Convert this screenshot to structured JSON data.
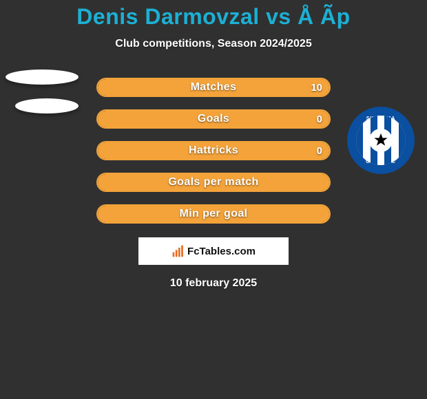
{
  "background_color": "#303030",
  "title": {
    "text": "Denis Darmovzal vs Å Ãp",
    "color": "#1cb0d4",
    "fontsize": 32
  },
  "subtitle": {
    "text": "Club competitions, Season 2024/2025",
    "color": "#ffffff",
    "fontsize": 16
  },
  "bars": {
    "fill_color": "#f3a33a",
    "border_color": "#f3a33a",
    "empty_color": "transparent",
    "height": 28,
    "radius": 14,
    "gap": 18,
    "label_fontsize": 16,
    "value_fontsize": 15,
    "items": [
      {
        "label": "Matches",
        "left": "",
        "right": "10",
        "fill_pct": 100
      },
      {
        "label": "Goals",
        "left": "",
        "right": "0",
        "fill_pct": 100
      },
      {
        "label": "Hattricks",
        "left": "",
        "right": "0",
        "fill_pct": 100
      },
      {
        "label": "Goals per match",
        "left": "",
        "right": "",
        "fill_pct": 100
      },
      {
        "label": "Min per goal",
        "left": "",
        "right": "",
        "fill_pct": 100
      }
    ]
  },
  "left_badges": {
    "background": "#ffffff",
    "count": 2
  },
  "right_club_badge": {
    "ring_color": "#0a4fa0",
    "stripe_colors": [
      "#0a4fa0",
      "#ffffff",
      "#0a4fa0",
      "#ffffff",
      "#0a4fa0",
      "#ffffff",
      "#0a4fa0"
    ],
    "star_color": "#000000",
    "text_top": "SK SIGMA",
    "text_bottom": "OLOMOUC",
    "text_color": "#ffffff"
  },
  "attribution": {
    "text": "FcTables.com",
    "box_background": "#ffffff",
    "text_color": "#111111",
    "icon_color": "#e76b1f"
  },
  "date": {
    "text": "10 february 2025",
    "color": "#ffffff",
    "fontsize": 16
  }
}
